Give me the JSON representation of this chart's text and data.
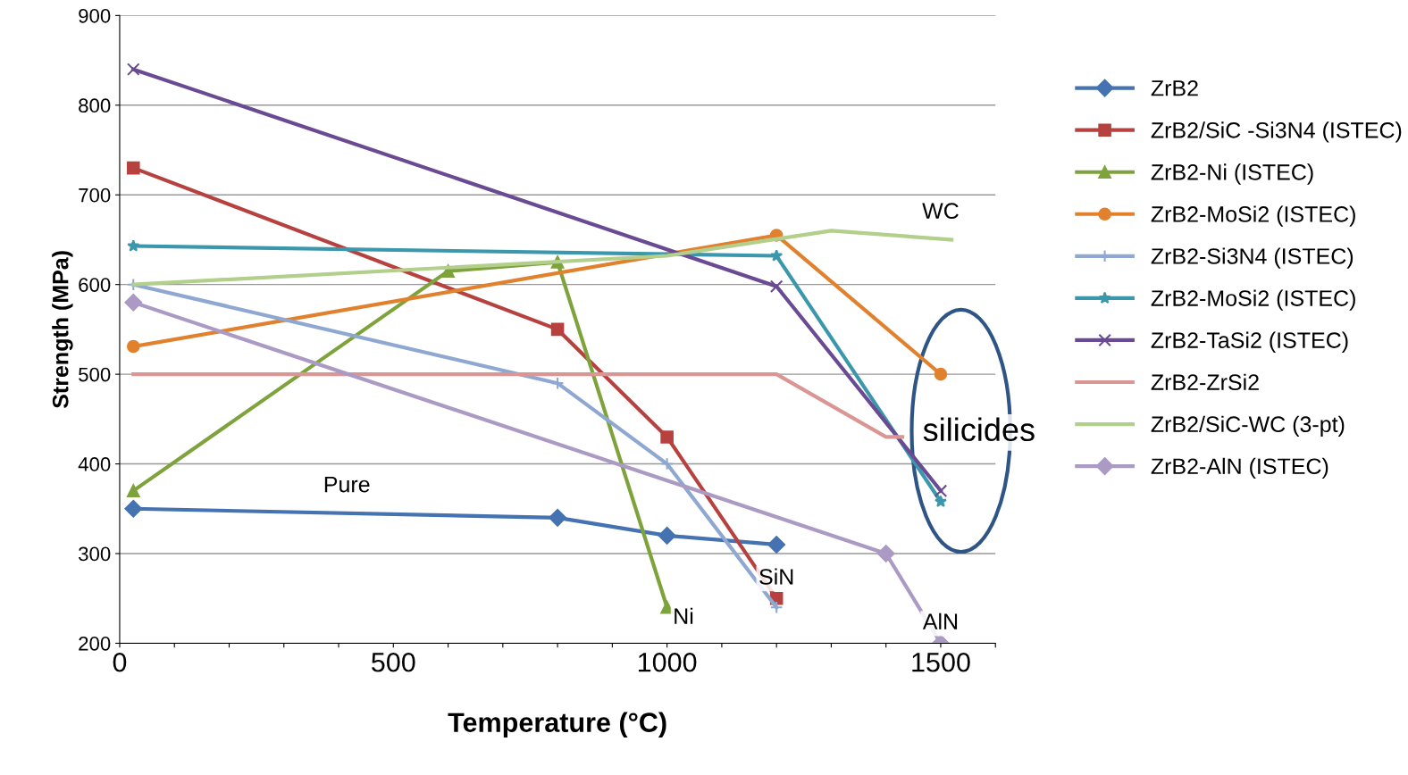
{
  "chart_data": {
    "type": "line",
    "xlabel": "Temperature (°C)",
    "ylabel": "Strength (MPa)",
    "xlim": [
      0,
      1600
    ],
    "ylim": [
      200,
      900
    ],
    "xticks": [
      0,
      {
        "value": 100,
        "label": null
      },
      {
        "value": 200,
        "label": null
      },
      {
        "value": 300,
        "label": null
      },
      {
        "value": 400,
        "label": null
      },
      500,
      {
        "value": 600,
        "label": null
      },
      {
        "value": 700,
        "label": null
      },
      {
        "value": 800,
        "label": null
      },
      {
        "value": 900,
        "label": null
      },
      1000,
      {
        "value": 1100,
        "label": null
      },
      {
        "value": 1200,
        "label": null
      },
      {
        "value": 1300,
        "label": null
      },
      {
        "value": 1400,
        "label": null
      },
      1500,
      {
        "value": 1600,
        "label": null
      }
    ],
    "yticks": [
      200,
      300,
      400,
      500,
      600,
      700,
      800,
      900
    ],
    "grid": "y",
    "legend": "right",
    "series": [
      {
        "name": "ZrB2",
        "color": "#4572b0",
        "marker": "diamond",
        "x": [
          25,
          800,
          1000,
          1200
        ],
        "values": [
          350,
          340,
          320,
          310
        ]
      },
      {
        "name": "ZrB2/SiC -Si3N4 (ISTEC)",
        "color": "#b6413e",
        "marker": "square",
        "x": [
          25,
          800,
          1000,
          1200
        ],
        "values": [
          730,
          550,
          430,
          250
        ]
      },
      {
        "name": "ZrB2-Ni (ISTEC)",
        "color": "#7fa33c",
        "marker": "triangle",
        "x": [
          25,
          600,
          800,
          1000
        ],
        "values": [
          370,
          615,
          625,
          240
        ]
      },
      {
        "name": "ZrB2-MoSi2 (ISTEC)",
        "color": "#e1812e",
        "marker": "circle",
        "x": [
          25,
          1200,
          1500
        ],
        "values": [
          531,
          655,
          500
        ]
      },
      {
        "name": "ZrB2-Si3N4 (ISTEC)",
        "color": "#8fa8d2",
        "marker": "plus",
        "x": [
          25,
          800,
          1000,
          1200
        ],
        "values": [
          600,
          490,
          400,
          240
        ]
      },
      {
        "name": "ZrB2-MoSi2 (ISTEC)",
        "color": "#3a97ac",
        "marker": "star",
        "x": [
          25,
          1200,
          1500
        ],
        "values": [
          643,
          632,
          358
        ]
      },
      {
        "name": "ZrB2-TaSi2 (ISTEC)",
        "color": "#6a4a92",
        "marker": "cross",
        "x": [
          25,
          1200,
          1500
        ],
        "values": [
          840,
          598,
          370
        ]
      },
      {
        "name": "ZrB2-ZrSi2",
        "color": "#d99694",
        "marker": "none",
        "x": [
          25,
          1200,
          1400,
          1430
        ],
        "values": [
          500,
          500,
          430,
          430
        ]
      },
      {
        "name": "ZrB2/SiC-WC (3-pt)",
        "color": "#b2cf8c",
        "marker": "none",
        "x": [
          25,
          1000,
          1300,
          1520
        ],
        "values": [
          600,
          632,
          660,
          650
        ]
      },
      {
        "name": "ZrB2-AlN (ISTEC)",
        "color": "#ab9ac4",
        "marker": "diamond",
        "x": [
          25,
          1400,
          1500
        ],
        "values": [
          580,
          300,
          200
        ]
      }
    ],
    "annotations": [
      "Pure",
      "Ni",
      "SiN",
      "AlN",
      "WC",
      "silicides"
    ]
  }
}
